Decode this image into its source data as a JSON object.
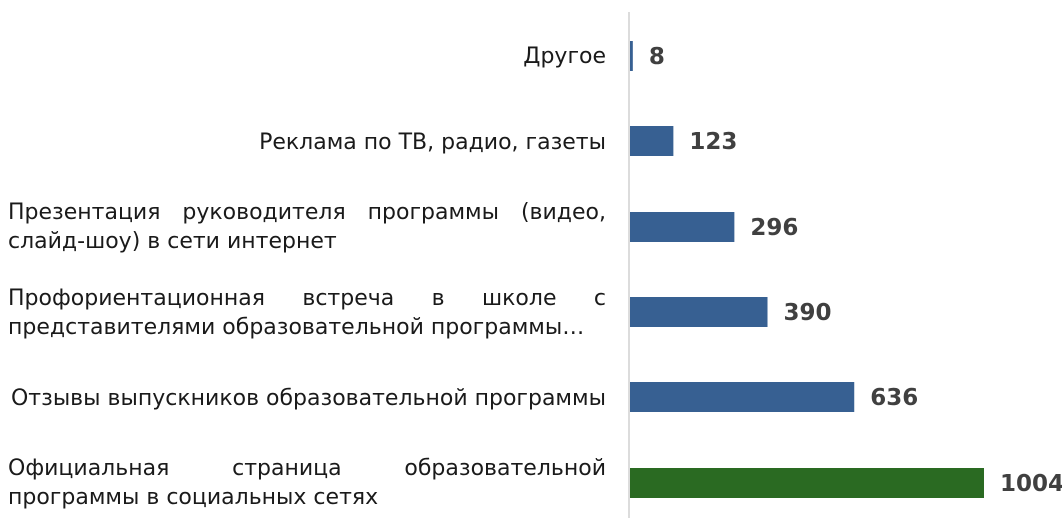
{
  "chart_data": {
    "type": "bar",
    "orientation": "horizontal",
    "categories": [
      "Другое",
      "Реклама по ТВ, радио, газеты",
      "Презентация руководителя программы (видео, слайд-шоу) в сети интернет",
      "Профориентационная встреча в школе с представителями образовательной программы…",
      "Отзывы выпускников образовательной программы",
      "Официальная страница образовательной программы в социальных сетях"
    ],
    "values": [
      8,
      123,
      296,
      390,
      636,
      1004
    ],
    "data_labels": [
      "8",
      "123",
      "296",
      "390",
      "636",
      "1004"
    ],
    "bar_colors": [
      "#376092",
      "#376092",
      "#376092",
      "#376092",
      "#376092",
      "#2a6a22"
    ],
    "xlim": [
      0,
      1004
    ],
    "grid": false,
    "legend": "none",
    "title": "",
    "xlabel": "",
    "ylabel": ""
  }
}
